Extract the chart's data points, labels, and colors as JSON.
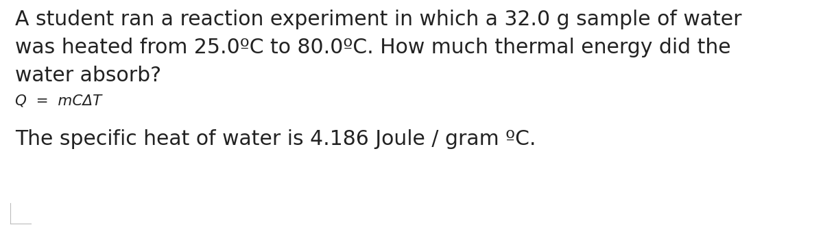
{
  "background_color": "#ffffff",
  "text_color": "#222222",
  "line1": "A student ran a reaction experiment in which a 32.0 g sample of water",
  "line2": "was heated from 25.0ºC to 80.0ºC. How much thermal energy did the",
  "line3": "water absorb?",
  "formula": "Q  =  mCΔT",
  "line4": "The specific heat of water is 4.186 Joule / gram ºC.",
  "main_fontsize": 21.5,
  "formula_fontsize": 15.5,
  "sub_fontsize": 21.5,
  "figwidth": 12.0,
  "figheight": 3.32
}
